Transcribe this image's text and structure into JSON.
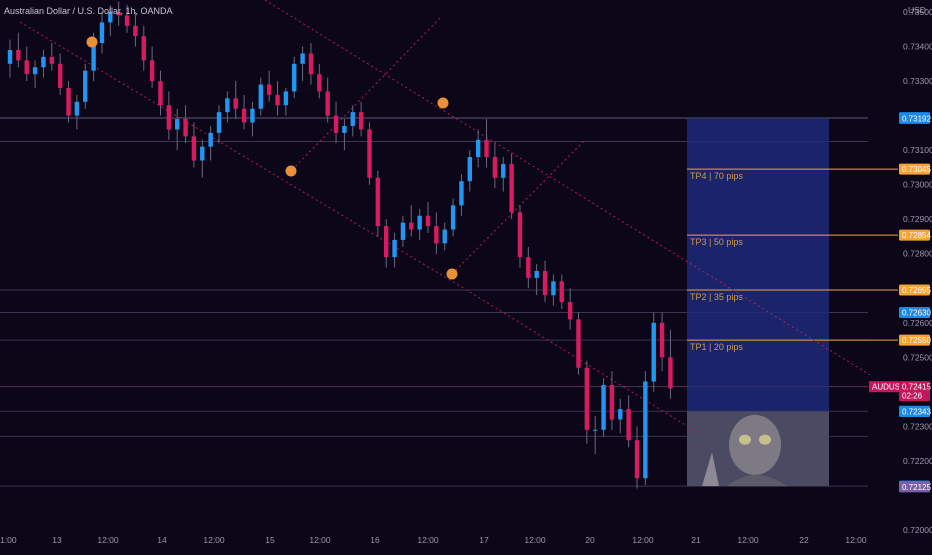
{
  "header": {
    "symbol_title": "Australian Dollar / U.S. Dollar, 1h, OANDA",
    "currency": "USD"
  },
  "colors": {
    "background": "#0b0618",
    "up_candle": "#2196f3",
    "down_candle": "#d81b60",
    "tp_line": "#f7a233",
    "horizontal_line": "#3a3550",
    "position_box": "#1c2a7a",
    "trend_line": "#c2185b",
    "pivot_marker": "#e8913a",
    "price_tag": "#c2185b",
    "tag_blue": "#1e88e5",
    "tag_purple": "#7b5ea8"
  },
  "price_axis": {
    "ticks": [
      "0.73500",
      "0.73400",
      "0.73300",
      "0.73100",
      "0.73000",
      "0.72900",
      "0.72800",
      "0.72600",
      "0.72500",
      "0.72300",
      "0.72200",
      "0.72000"
    ],
    "range": [
      0.72,
      0.7353
    ]
  },
  "time_axis": {
    "labels": [
      "01:00",
      "13",
      "12:00",
      "14",
      "12:00",
      "15",
      "12:00",
      "16",
      "12:00",
      "17",
      "12:00",
      "20",
      "12:00",
      "21",
      "12:00",
      "22",
      "12:00"
    ]
  },
  "price_tags": [
    {
      "value": "0.73194",
      "color": "#1e88e5"
    },
    {
      "value": "0.73192",
      "color": "#1e88e5"
    },
    {
      "value": "0.73045",
      "color": "#f7a233"
    },
    {
      "value": "0.72854",
      "color": "#f7a233"
    },
    {
      "value": "0.72695",
      "color": "#f7a233"
    },
    {
      "value": "0.72630",
      "color": "#1e88e5"
    },
    {
      "value": "0.72550",
      "color": "#f7a233"
    },
    {
      "value": "0.72344",
      "color": "#7b5ea8"
    },
    {
      "value": "0.72343",
      "color": "#1e88e5"
    },
    {
      "value": "0.72127",
      "color": "#1e88e5"
    },
    {
      "value": "0.72125",
      "color": "#7b5ea8"
    }
  ],
  "current_price": {
    "symbol": "AUDUSD",
    "value": "0.72415",
    "countdown": "02:26"
  },
  "take_profits": [
    {
      "label": "TP4 | 70 pips",
      "price": 0.73045
    },
    {
      "label": "TP3 | 50 pips",
      "price": 0.72854
    },
    {
      "label": "TP2 | 35 pips",
      "price": 0.72695
    },
    {
      "label": "TP1 | 20 pips",
      "price": 0.7255
    }
  ],
  "horizontal_levels": [
    0.73194,
    0.73192,
    0.73125,
    0.72695,
    0.7263,
    0.7255,
    0.72415,
    0.72344,
    0.72271,
    0.72127
  ],
  "position": {
    "type": "long",
    "entry": 0.72344,
    "target": 0.73192,
    "stop": 0.72127
  },
  "ohlc": [
    [
      0.7335,
      0.7342,
      0.7331,
      0.7339
    ],
    [
      0.7339,
      0.7344,
      0.7334,
      0.7336
    ],
    [
      0.7336,
      0.734,
      0.733,
      0.7332
    ],
    [
      0.7332,
      0.7336,
      0.7328,
      0.7334
    ],
    [
      0.7334,
      0.7339,
      0.7331,
      0.7337
    ],
    [
      0.7337,
      0.7341,
      0.7333,
      0.7335
    ],
    [
      0.7335,
      0.7338,
      0.7326,
      0.7328
    ],
    [
      0.7328,
      0.733,
      0.7318,
      0.732
    ],
    [
      0.732,
      0.7326,
      0.7316,
      0.7324
    ],
    [
      0.7324,
      0.7335,
      0.7322,
      0.7333
    ],
    [
      0.7333,
      0.7344,
      0.733,
      0.7341
    ],
    [
      0.7341,
      0.735,
      0.7338,
      0.7347
    ],
    [
      0.7347,
      0.7352,
      0.7343,
      0.735
    ],
    [
      0.735,
      0.7353,
      0.7346,
      0.7349
    ],
    [
      0.7349,
      0.7352,
      0.7344,
      0.7346
    ],
    [
      0.7346,
      0.735,
      0.734,
      0.7343
    ],
    [
      0.7343,
      0.7346,
      0.7333,
      0.7336
    ],
    [
      0.7336,
      0.734,
      0.7328,
      0.733
    ],
    [
      0.733,
      0.7333,
      0.732,
      0.7323
    ],
    [
      0.7323,
      0.7327,
      0.7313,
      0.7316
    ],
    [
      0.7316,
      0.7322,
      0.731,
      0.7319
    ],
    [
      0.7319,
      0.7323,
      0.7312,
      0.7314
    ],
    [
      0.7314,
      0.7318,
      0.7305,
      0.7307
    ],
    [
      0.7307,
      0.7313,
      0.7302,
      0.7311
    ],
    [
      0.7311,
      0.7317,
      0.7307,
      0.7315
    ],
    [
      0.7315,
      0.7323,
      0.7312,
      0.7321
    ],
    [
      0.7321,
      0.7327,
      0.7318,
      0.7325
    ],
    [
      0.7325,
      0.733,
      0.7319,
      0.7322
    ],
    [
      0.7322,
      0.7326,
      0.7316,
      0.7318
    ],
    [
      0.7318,
      0.7324,
      0.7314,
      0.7322
    ],
    [
      0.7322,
      0.7331,
      0.732,
      0.7329
    ],
    [
      0.7329,
      0.7333,
      0.7324,
      0.7326
    ],
    [
      0.7326,
      0.733,
      0.732,
      0.7323
    ],
    [
      0.7323,
      0.7328,
      0.732,
      0.7327
    ],
    [
      0.7327,
      0.7337,
      0.7325,
      0.7335
    ],
    [
      0.7335,
      0.734,
      0.733,
      0.7338
    ],
    [
      0.7338,
      0.7341,
      0.7329,
      0.7332
    ],
    [
      0.7332,
      0.7335,
      0.7325,
      0.7327
    ],
    [
      0.7327,
      0.7331,
      0.7318,
      0.732
    ],
    [
      0.732,
      0.7324,
      0.7312,
      0.7315
    ],
    [
      0.7315,
      0.7319,
      0.731,
      0.7317
    ],
    [
      0.7317,
      0.7323,
      0.7314,
      0.7321
    ],
    [
      0.7321,
      0.7324,
      0.7314,
      0.7316
    ],
    [
      0.7316,
      0.7318,
      0.73,
      0.7302
    ],
    [
      0.7302,
      0.7304,
      0.7285,
      0.7288
    ],
    [
      0.7288,
      0.729,
      0.7276,
      0.7279
    ],
    [
      0.7279,
      0.7286,
      0.7276,
      0.7284
    ],
    [
      0.7284,
      0.7291,
      0.7282,
      0.7289
    ],
    [
      0.7289,
      0.7294,
      0.7285,
      0.7287
    ],
    [
      0.7287,
      0.7293,
      0.7284,
      0.7291
    ],
    [
      0.7291,
      0.7295,
      0.7286,
      0.7288
    ],
    [
      0.7288,
      0.7292,
      0.728,
      0.7283
    ],
    [
      0.7283,
      0.7289,
      0.7281,
      0.7287
    ],
    [
      0.7287,
      0.7296,
      0.7285,
      0.7294
    ],
    [
      0.7294,
      0.7303,
      0.7291,
      0.7301
    ],
    [
      0.7301,
      0.731,
      0.7298,
      0.7308
    ],
    [
      0.7308,
      0.7316,
      0.7305,
      0.7313
    ],
    [
      0.7313,
      0.7319,
      0.7305,
      0.7308
    ],
    [
      0.7308,
      0.7312,
      0.7299,
      0.7302
    ],
    [
      0.7302,
      0.7308,
      0.7298,
      0.7306
    ],
    [
      0.7306,
      0.7309,
      0.729,
      0.7292
    ],
    [
      0.7292,
      0.7294,
      0.7276,
      0.7279
    ],
    [
      0.7279,
      0.7282,
      0.727,
      0.7273
    ],
    [
      0.7273,
      0.7277,
      0.7268,
      0.7275
    ],
    [
      0.7275,
      0.7278,
      0.7266,
      0.7268
    ],
    [
      0.7268,
      0.7274,
      0.7265,
      0.7272
    ],
    [
      0.7272,
      0.7274,
      0.7264,
      0.7266
    ],
    [
      0.7266,
      0.727,
      0.7258,
      0.7261
    ],
    [
      0.7261,
      0.7263,
      0.7245,
      0.7247
    ],
    [
      0.7247,
      0.7249,
      0.7225,
      0.7229
    ],
    [
      0.7229,
      0.7233,
      0.7222,
      0.7229
    ],
    [
      0.7229,
      0.7244,
      0.7227,
      0.7242
    ],
    [
      0.7242,
      0.7246,
      0.7229,
      0.7232
    ],
    [
      0.7232,
      0.7238,
      0.7228,
      0.7235
    ],
    [
      0.7235,
      0.7239,
      0.7224,
      0.7226
    ],
    [
      0.7226,
      0.723,
      0.7212,
      0.7215
    ],
    [
      0.7215,
      0.7246,
      0.7213,
      0.7243
    ],
    [
      0.7243,
      0.7263,
      0.724,
      0.726
    ],
    [
      0.726,
      0.7263,
      0.7246,
      0.725
    ],
    [
      0.725,
      0.7258,
      0.7238,
      0.7241
    ]
  ]
}
